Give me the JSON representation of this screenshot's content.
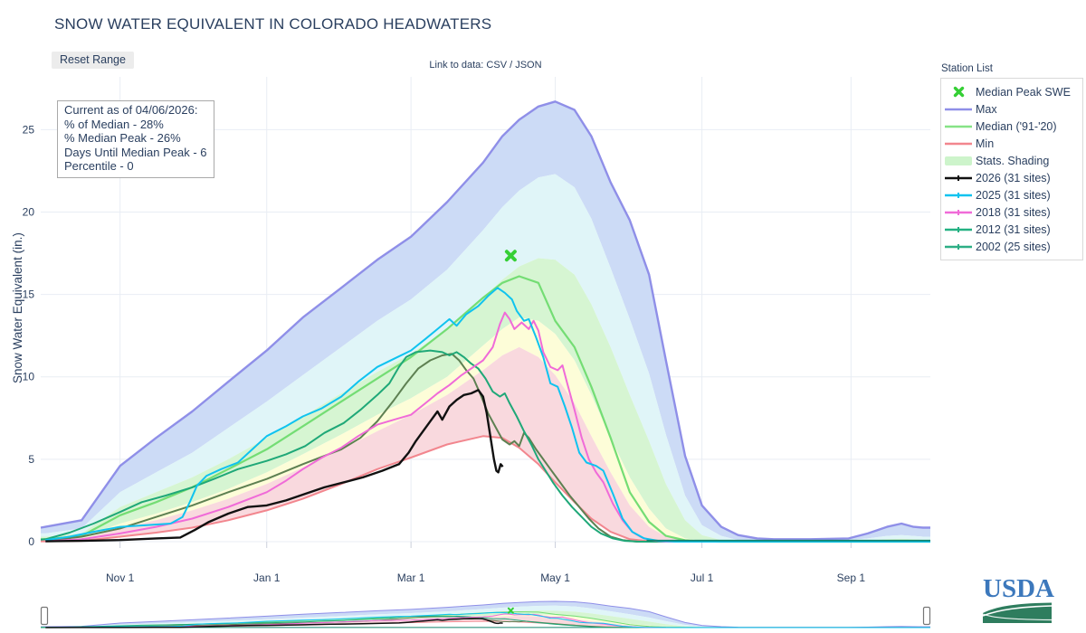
{
  "title": "SNOW WATER EQUIVALENT IN COLORADO HEADWATERS",
  "toolbar": {
    "reset_label": "Reset Range",
    "link_prefix": "Link to data: ",
    "csv_label": "CSV",
    "link_sep": " / ",
    "json_label": "JSON"
  },
  "info_box": {
    "lines": [
      "Current as of 04/06/2026:",
      "% of Median - 28%",
      "% Median Peak - 26%",
      "Days Until Median Peak - 6",
      "Percentile - 0"
    ]
  },
  "legend": {
    "title": "Station List",
    "items": [
      {
        "id": "peak",
        "label": "Median Peak SWE",
        "type": "marker",
        "color": "#35cf35"
      },
      {
        "id": "max",
        "label": "Max",
        "type": "line",
        "color": "#8f8fe8"
      },
      {
        "id": "median",
        "label": "Median ('91-'20)",
        "type": "line",
        "color": "#86e386"
      },
      {
        "id": "min",
        "label": "Min",
        "type": "line",
        "color": "#f2868e"
      },
      {
        "id": "shade",
        "label": "Stats. Shading",
        "type": "patch",
        "color": "#cdf4cb"
      },
      {
        "id": "2026",
        "label": "2026 (31 sites)",
        "type": "line-marker",
        "color": "#111111"
      },
      {
        "id": "2025",
        "label": "2025 (31 sites)",
        "type": "line-marker",
        "color": "#0fc3ef"
      },
      {
        "id": "2018",
        "label": "2018 (31 sites)",
        "type": "line-marker",
        "color": "#f06bd8"
      },
      {
        "id": "2012",
        "label": "2012 (31 sites)",
        "type": "line-marker",
        "color": "#24b183"
      },
      {
        "id": "2002",
        "label": "2002 (25 sites)",
        "type": "line-marker",
        "color": "#2dae85"
      }
    ]
  },
  "y_axis_title": "Snow Water Equivalent (in.)",
  "usda": {
    "label": "USDA"
  },
  "chart_data": {
    "type": "line",
    "title": "SNOW WATER EQUIVALENT IN COLORADO HEADWATERS",
    "xlabel": "",
    "ylabel": "Snow Water Equivalent (in.)",
    "x_unit": "days since Oct 1 (water year)",
    "x_range": [
      -2,
      368
    ],
    "y_range": [
      0,
      28.2
    ],
    "grid": true,
    "legend_position": "right",
    "x_ticks": [
      {
        "day": 31,
        "label": "Nov 1"
      },
      {
        "day": 92,
        "label": "Jan 1"
      },
      {
        "day": 152,
        "label": "Mar 1"
      },
      {
        "day": 212,
        "label": "May 1"
      },
      {
        "day": 273,
        "label": "Jul 1"
      },
      {
        "day": 335,
        "label": "Sep 1"
      }
    ],
    "y_ticks": [
      0,
      5,
      10,
      15,
      20,
      25
    ],
    "envelopes": {
      "x": [
        -2,
        0,
        15,
        31,
        46,
        61,
        76,
        92,
        107,
        123,
        138,
        152,
        167,
        182,
        190,
        197,
        205,
        212,
        220,
        227,
        235,
        243,
        251,
        258,
        266,
        273,
        281,
        288,
        296,
        303,
        318,
        334,
        342,
        350,
        356,
        361,
        365,
        368
      ],
      "max": [
        0.85,
        0.9,
        1.3,
        4.6,
        6.3,
        7.9,
        9.7,
        11.6,
        13.6,
        15.4,
        17.1,
        18.5,
        20.6,
        23.0,
        24.6,
        25.6,
        26.4,
        26.7,
        26.2,
        24.6,
        21.8,
        19.5,
        16.2,
        11.0,
        5.2,
        2.2,
        0.9,
        0.4,
        0.2,
        0.15,
        0.15,
        0.2,
        0.5,
        0.9,
        1.1,
        0.9,
        0.85,
        0.85
      ],
      "p90": [
        0.5,
        0.5,
        0.8,
        3.0,
        4.2,
        5.4,
        6.9,
        8.5,
        10.1,
        11.8,
        13.4,
        14.7,
        16.5,
        18.9,
        20.3,
        21.3,
        22.1,
        22.3,
        21.5,
        19.6,
        16.6,
        13.5,
        10.2,
        6.5,
        2.8,
        1.0,
        0.35,
        0.1,
        0.05,
        0.05,
        0.05,
        0.1,
        0.2,
        0.35,
        0.4,
        0.35,
        0.3,
        0.3
      ],
      "p70": [
        0.3,
        0.3,
        0.5,
        2.1,
        3.0,
        3.9,
        5.0,
        6.3,
        7.6,
        9.0,
        10.3,
        11.4,
        12.9,
        14.8,
        15.9,
        16.7,
        17.2,
        17.1,
        16.2,
        14.4,
        11.8,
        8.9,
        6.1,
        3.5,
        1.3,
        0.4,
        0.1,
        0.02,
        0,
        0,
        0,
        0.02,
        0.08,
        0.15,
        0.18,
        0.15,
        0.12,
        0.12
      ],
      "p30": [
        0.12,
        0.12,
        0.25,
        1.1,
        1.7,
        2.4,
        3.2,
        4.2,
        5.3,
        6.5,
        7.7,
        8.7,
        10.0,
        11.9,
        12.9,
        13.6,
        13.4,
        12.6,
        11.0,
        8.9,
        6.3,
        3.9,
        2.0,
        0.8,
        0.2,
        0.05,
        0,
        0,
        0,
        0,
        0,
        0,
        0,
        0.03,
        0.05,
        0.04,
        0.03,
        0.03
      ],
      "p10": [
        0.08,
        0.08,
        0.15,
        0.8,
        1.3,
        1.9,
        2.6,
        3.5,
        4.5,
        5.6,
        6.7,
        7.7,
        8.9,
        10.4,
        11.3,
        11.8,
        11.2,
        10.1,
        8.4,
        6.4,
        4.2,
        2.2,
        0.9,
        0.3,
        0.05,
        0,
        0,
        0,
        0,
        0,
        0,
        0,
        0,
        0,
        0,
        0,
        0,
        0
      ],
      "min": [
        0.02,
        0.02,
        0.05,
        0.3,
        0.55,
        0.85,
        1.3,
        1.9,
        2.6,
        3.5,
        4.4,
        5.1,
        5.9,
        6.4,
        6.3,
        5.7,
        4.7,
        3.6,
        2.4,
        1.4,
        0.6,
        0.15,
        0.03,
        0,
        0,
        0,
        0,
        0,
        0,
        0,
        0,
        0,
        0,
        0,
        0,
        0,
        0,
        0
      ],
      "median": [
        0.15,
        0.15,
        0.35,
        1.6,
        2.4,
        3.3,
        4.4,
        5.6,
        7.0,
        8.5,
        9.9,
        11.2,
        12.9,
        14.8,
        15.7,
        16.1,
        15.7,
        13.4,
        11.8,
        9.4,
        6.3,
        3.0,
        1.2,
        0.35,
        0.08,
        0.02,
        0,
        0,
        0,
        0,
        0,
        0,
        0,
        0,
        0,
        0,
        0,
        0
      ]
    },
    "bands": [
      {
        "name": "max-p90",
        "upper": "max",
        "lower": "p90",
        "color": "#ccdbf6"
      },
      {
        "name": "p90-p70",
        "upper": "p90",
        "lower": "p70",
        "color": "#e0f5f8"
      },
      {
        "name": "p70-p30",
        "upper": "p70",
        "lower": "p30",
        "color": "#d6f5d2"
      },
      {
        "name": "p30-p10",
        "upper": "p30",
        "lower": "p10",
        "color": "#fdfdd8"
      },
      {
        "name": "p10-min",
        "upper": "p10",
        "lower": "min",
        "color": "#f9d9de"
      }
    ],
    "env_lines": [
      {
        "name": "max",
        "color": "#8f8fe8",
        "width": 2.4
      },
      {
        "name": "median",
        "color": "#74dd74",
        "width": 2.2
      },
      {
        "name": "min",
        "color": "#f2868e",
        "width": 2.0
      }
    ],
    "series": [
      {
        "name": "2002",
        "label": "2002 (25 sites)",
        "color": "#5e8052",
        "width": 2,
        "x": [
          0,
          15,
          31,
          46,
          61,
          76,
          92,
          107,
          123,
          131,
          138,
          145,
          150,
          155,
          160,
          165,
          169,
          172,
          175,
          178,
          181,
          184,
          187,
          190,
          193,
          195,
          197,
          199,
          201,
          204,
          207,
          210,
          214,
          218,
          222,
          226,
          230,
          235,
          240,
          246,
          368
        ],
        "y": [
          0.05,
          0.3,
          0.8,
          1.5,
          2.2,
          3.0,
          3.8,
          4.7,
          5.6,
          6.3,
          7.3,
          8.6,
          9.6,
          10.5,
          11.0,
          11.3,
          11.4,
          11.0,
          10.4,
          9.9,
          8.9,
          7.8,
          7.0,
          6.2,
          5.9,
          6.1,
          5.8,
          6.6,
          6.3,
          5.6,
          5.0,
          4.4,
          3.6,
          2.8,
          2.1,
          1.4,
          0.8,
          0.3,
          0.1,
          0,
          0
        ]
      },
      {
        "name": "2012",
        "label": "2012 (31 sites)",
        "color": "#1fa878",
        "width": 2,
        "x": [
          -2,
          0,
          10,
          20,
          31,
          40,
          50,
          61,
          70,
          80,
          92,
          100,
          108,
          116,
          124,
          131,
          138,
          143,
          147,
          150,
          154,
          160,
          165,
          168,
          171,
          174,
          177,
          180,
          183,
          186,
          189,
          191,
          193,
          196,
          199,
          202,
          205,
          208,
          211,
          215,
          219,
          223,
          227,
          231,
          236,
          241,
          247,
          368
        ],
        "y": [
          0.12,
          0.15,
          0.55,
          1.1,
          1.8,
          2.4,
          2.8,
          3.3,
          3.8,
          4.4,
          4.9,
          5.3,
          5.8,
          6.6,
          7.2,
          8.0,
          8.9,
          9.6,
          10.6,
          11.2,
          11.5,
          11.6,
          11.5,
          11.3,
          11.5,
          11.2,
          10.8,
          10.5,
          9.9,
          9.1,
          8.8,
          9.0,
          8.4,
          7.6,
          6.7,
          5.9,
          5.0,
          4.3,
          3.6,
          2.8,
          2.1,
          1.5,
          0.9,
          0.5,
          0.2,
          0.05,
          0,
          0
        ]
      },
      {
        "name": "2018",
        "label": "2018 (31 sites)",
        "color": "#f06bd8",
        "width": 2,
        "x": [
          0,
          15,
          31,
          46,
          61,
          76,
          92,
          100,
          107,
          115,
          123,
          130,
          138,
          145,
          152,
          158,
          163,
          168,
          173,
          178,
          182,
          186,
          189,
          191,
          193,
          195,
          198,
          201,
          203,
          205,
          207,
          210,
          213,
          215,
          217,
          220,
          223,
          226,
          229,
          232,
          236,
          240,
          244,
          248,
          252,
          258,
          368
        ],
        "y": [
          0.02,
          0.15,
          0.5,
          0.9,
          1.4,
          2.1,
          3.0,
          3.7,
          4.4,
          5.1,
          5.7,
          6.4,
          7.1,
          7.4,
          7.7,
          8.4,
          9.0,
          9.5,
          10.1,
          10.6,
          11.0,
          11.8,
          13.2,
          13.9,
          13.5,
          12.9,
          13.3,
          12.9,
          13.4,
          12.8,
          11.5,
          10.6,
          10.4,
          10.7,
          9.6,
          8.0,
          6.3,
          5.0,
          4.2,
          3.6,
          2.3,
          1.3,
          0.6,
          0.25,
          0.08,
          0,
          0
        ]
      },
      {
        "name": "2025",
        "label": "2025 (31 sites)",
        "color": "#0fc3ef",
        "width": 2,
        "x": [
          0,
          10,
          20,
          31,
          42,
          52,
          57,
          60,
          63,
          67,
          73,
          80,
          86,
          92,
          100,
          107,
          115,
          123,
          130,
          138,
          145,
          152,
          158,
          163,
          168,
          171,
          175,
          180,
          184,
          188,
          191,
          194,
          196,
          199,
          201,
          204,
          207,
          210,
          213,
          216,
          219,
          222,
          225,
          229,
          232,
          236,
          240,
          244,
          249,
          255,
          262,
          368
        ],
        "y": [
          0.1,
          0.3,
          0.6,
          0.9,
          1.0,
          1.1,
          1.5,
          2.4,
          3.4,
          4.0,
          4.4,
          4.8,
          5.6,
          6.4,
          7.0,
          7.6,
          8.1,
          8.8,
          9.7,
          10.6,
          11.1,
          11.6,
          12.3,
          12.9,
          13.5,
          13.1,
          13.8,
          14.3,
          14.9,
          15.4,
          15.1,
          14.7,
          14.0,
          13.4,
          13.5,
          12.4,
          11.2,
          9.6,
          9.4,
          8.2,
          6.9,
          5.4,
          4.8,
          4.6,
          4.3,
          2.9,
          1.4,
          0.6,
          0.2,
          0.05,
          0,
          0
        ]
      },
      {
        "name": "2026",
        "label": "2026 (31 sites)",
        "color": "#111111",
        "width": 2.4,
        "x": [
          0,
          15,
          31,
          46,
          56,
          62,
          68,
          76,
          84,
          92,
          100,
          108,
          116,
          124,
          132,
          140,
          147,
          151,
          154,
          157,
          160,
          163,
          165,
          168,
          171,
          174,
          177,
          180,
          182,
          183.5,
          185,
          186.5,
          187.5,
          188.3,
          189.3,
          190.2
        ],
        "y": [
          0.02,
          0.05,
          0.1,
          0.2,
          0.25,
          0.7,
          1.2,
          1.7,
          2.1,
          2.2,
          2.5,
          2.9,
          3.3,
          3.6,
          3.9,
          4.3,
          4.7,
          5.4,
          6.1,
          6.7,
          7.3,
          7.9,
          7.4,
          8.2,
          8.6,
          8.9,
          9.0,
          9.2,
          8.8,
          7.8,
          6.4,
          5.0,
          4.3,
          4.2,
          4.7,
          4.55
        ]
      }
    ],
    "zero_tail": {
      "x_start": 250,
      "x_end": 368,
      "value": 0.07,
      "color": "#12826b"
    },
    "peak_marker": {
      "label": "Median Peak SWE",
      "day": 193.5,
      "value": 17.35,
      "color": "#35cf35"
    },
    "annotations": {
      "current_as_of": "04/06/2026",
      "pct_of_median": "28%",
      "pct_median_peak": "26%",
      "days_until_median_peak": 6,
      "percentile": 0
    }
  }
}
